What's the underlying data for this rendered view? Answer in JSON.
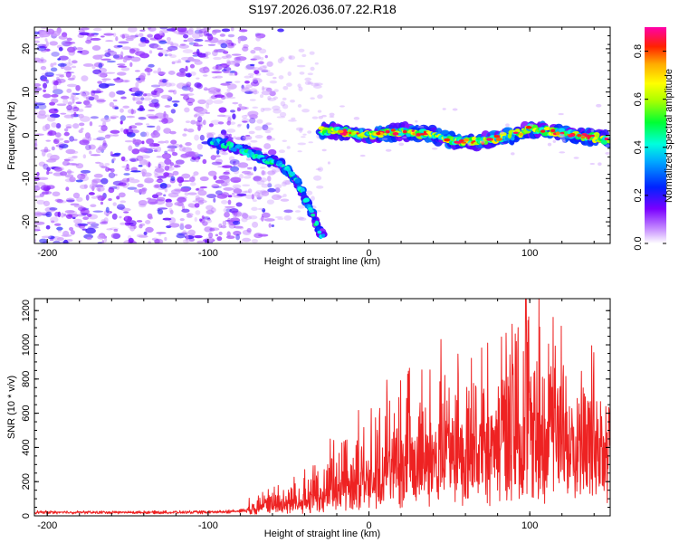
{
  "title": "S197.2026.036.07.22.R18",
  "chart_data": [
    {
      "type": "heatmap",
      "title": "S197.2026.036.07.22.R18",
      "xlabel": "Height of straight line (km)",
      "ylabel": "Frequency (Hz)",
      "xlim": [
        -208,
        150
      ],
      "ylim": [
        -25,
        25
      ],
      "xticks": [
        -200,
        -100,
        0,
        100
      ],
      "yticks": [
        -20,
        -10,
        0,
        10,
        20
      ],
      "colorbar": {
        "label": "Normalized spectral amplitude",
        "range": [
          0,
          0.9
        ],
        "ticks": [
          0.0,
          0.2,
          0.4,
          0.6,
          0.8
        ]
      },
      "ridge_trace": {
        "x": [
          -95,
          -85,
          -75,
          -65,
          -55,
          -48,
          -42,
          -36,
          -30,
          -20,
          -10,
          0,
          10,
          20,
          30,
          40,
          50,
          60,
          70,
          80,
          90,
          100,
          110,
          120,
          130,
          140,
          150
        ],
        "y": [
          -1.5,
          -2.5,
          -4.0,
          -5.5,
          -6.5,
          -9.0,
          -12.5,
          -17.5,
          -23.0,
          1.0,
          0.5,
          0.0,
          0.5,
          1.0,
          0.5,
          0.0,
          -1.0,
          -1.5,
          -1.5,
          -0.5,
          0.0,
          1.5,
          1.0,
          0.5,
          0.0,
          -0.5,
          -1.0
        ]
      }
    },
    {
      "type": "line",
      "xlabel": "Height of straight line (km)",
      "ylabel": "SNR (10 * v/v)",
      "xlim": [
        -208,
        150
      ],
      "ylim": [
        0,
        1270
      ],
      "xticks": [
        -200,
        -100,
        0,
        100
      ],
      "yticks": [
        0,
        200,
        400,
        600,
        800,
        1000,
        1200
      ],
      "series": [
        {
          "name": "SNR",
          "color": "#ee2222",
          "envelope": {
            "x": [
              -208,
              -150,
              -100,
              -80,
              -60,
              -40,
              -20,
              0,
              20,
              40,
              60,
              80,
              100,
              120,
              150
            ],
            "baseline": [
              15,
              15,
              15,
              20,
              40,
              60,
              100,
              150,
              200,
              250,
              280,
              300,
              320,
              330,
              330
            ],
            "peak": [
              45,
              40,
              45,
              60,
              160,
              230,
              450,
              550,
              750,
              850,
              900,
              1000,
              1270,
              1000,
              800
            ]
          }
        }
      ]
    }
  ]
}
